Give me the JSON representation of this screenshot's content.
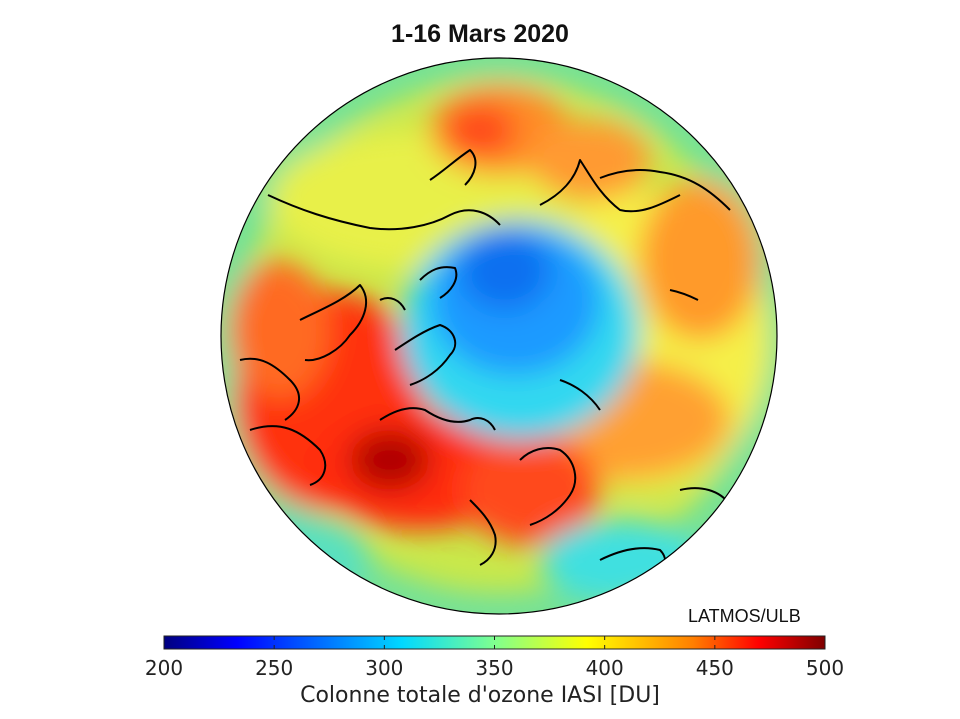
{
  "title": "1-16 Mars 2020",
  "credit": "LATMOS/ULB",
  "colorbar": {
    "label": "Colonne totale d'ozone IASI [DU]",
    "min": 200,
    "max": 500,
    "ticks": [
      "200",
      "250",
      "300",
      "350",
      "400",
      "450",
      "500"
    ],
    "colormap": [
      "#00007f",
      "#0000ff",
      "#007fff",
      "#00ffff",
      "#7fff7f",
      "#ffff00",
      "#ff7f00",
      "#ff0000",
      "#7f0000"
    ]
  },
  "map": {
    "projection": "north-polar-stereographic",
    "field": "total-ozone-column"
  }
}
